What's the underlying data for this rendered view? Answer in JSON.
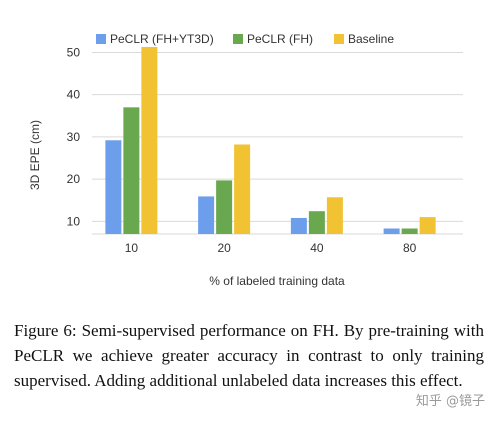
{
  "chart_data": {
    "type": "bar",
    "categories": [
      "10",
      "20",
      "40",
      "80"
    ],
    "series": [
      {
        "name": "PeCLR (FH+YT3D)",
        "color": "#6d9eeb",
        "values": [
          29.2,
          15.9,
          10.8,
          8.3
        ]
      },
      {
        "name": "PeCLR (FH)",
        "color": "#6aa84f",
        "values": [
          37.0,
          19.7,
          12.4,
          8.3
        ]
      },
      {
        "name": "Baseline",
        "color": "#f1c232",
        "values": [
          51.3,
          28.2,
          15.7,
          11.0
        ]
      }
    ],
    "title": "",
    "xlabel": "% of labeled training data",
    "ylabel": "3D EPE (cm)",
    "ylim": [
      7,
      52
    ],
    "yticks": [
      10,
      20,
      30,
      40,
      50
    ],
    "grid": true,
    "legend": "top"
  },
  "caption": "Figure 6:  Semi-supervised performance on FH. By pre-training with PeCLR we achieve greater accuracy in contrast to only training supervised.  Adding additional unlabeled data increases this effect.",
  "watermark": "知乎 @镜子"
}
